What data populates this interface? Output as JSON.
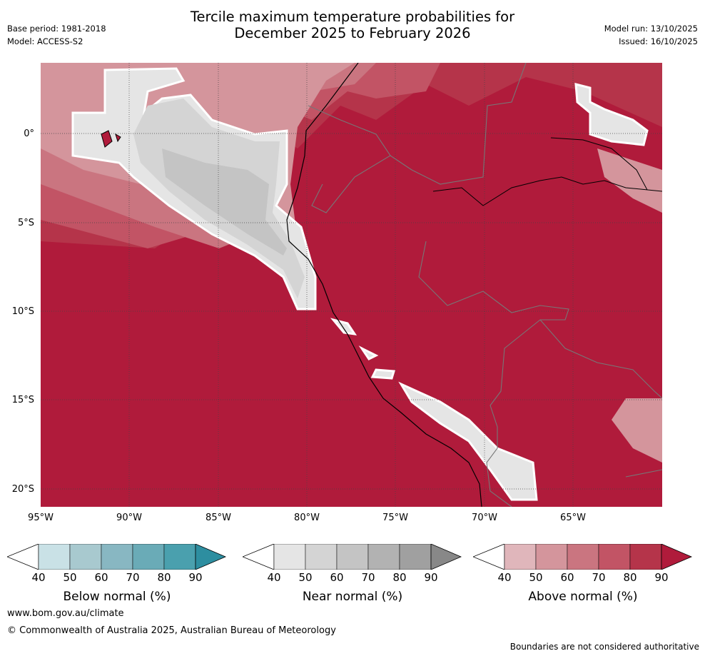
{
  "title_line1": "Tercile maximum temperature probabilities for",
  "title_line2": "December 2025 to February 2026",
  "base_period": "Base period: 1981-2018",
  "model": "Model: ACCESS-S2",
  "model_run": "Model run: 13/10/2025",
  "issued": "Issued: 16/10/2025",
  "lat_labels": [
    "0°",
    "5°S",
    "10°S",
    "15°S",
    "20°S"
  ],
  "lon_labels": [
    "95°W",
    "90°W",
    "85°W",
    "80°W",
    "75°W",
    "70°W",
    "65°W"
  ],
  "colorbars": [
    {
      "label": "Below normal (%)",
      "ticks": [
        "40",
        "50",
        "60",
        "70",
        "80",
        "90"
      ],
      "colors": [
        "#ffffff",
        "#c9e1e6",
        "#a8c9cf",
        "#88b7c2",
        "#6aabb7",
        "#4aa0ae",
        "#2d8ea0"
      ]
    },
    {
      "label": "Near normal (%)",
      "ticks": [
        "40",
        "50",
        "60",
        "70",
        "80",
        "90"
      ],
      "colors": [
        "#ffffff",
        "#e5e5e5",
        "#d4d4d4",
        "#c4c4c4",
        "#b2b2b2",
        "#a0a0a0",
        "#888888"
      ]
    },
    {
      "label": "Above normal (%)",
      "ticks": [
        "40",
        "50",
        "60",
        "70",
        "80",
        "90"
      ],
      "colors": [
        "#ffffff",
        "#e0b6bb",
        "#d4959c",
        "#ca7580",
        "#c25465",
        "#b5344a",
        "#b01b3b"
      ]
    }
  ],
  "website": "www.bom.gov.au/climate",
  "copyright": "© Commonwealth of Australia 2025, Australian Bureau of Meteorology",
  "disclaimer": "Boundaries are not considered authoritative"
}
